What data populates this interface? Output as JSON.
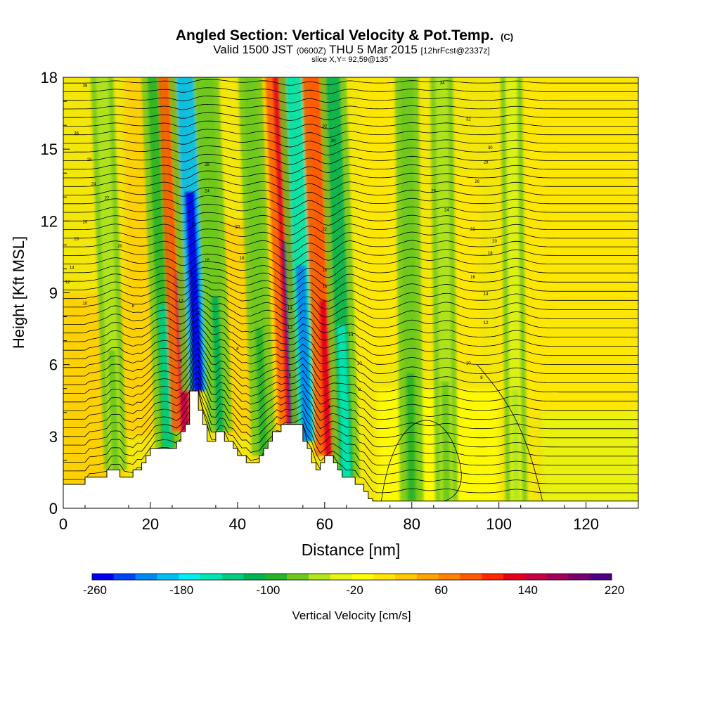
{
  "chart_data": {
    "type": "heatmap",
    "title": "Angled Section: Vertical Velocity & Pot.Temp.",
    "title_units": "(C)",
    "subtitle_valid": "Valid 1500 JST",
    "subtitle_utc": "(0600Z)",
    "subtitle_date": "THU 5 Mar 2015",
    "subtitle_run": "[12hrFcst@2337z]",
    "slice_text": "slice X,Y= 92,59@135°",
    "xlabel": "Distance [nm]",
    "ylabel": "Height [Kft MSL]",
    "xlim": [
      0,
      132
    ],
    "ylim": [
      0,
      18
    ],
    "x_ticks": [
      "0",
      "20",
      "40",
      "60",
      "80",
      "100",
      "120"
    ],
    "y_ticks": [
      "0",
      "3",
      "6",
      "9",
      "12",
      "15",
      "18"
    ],
    "colorbar": {
      "label": "Vertical Velocity [cm/s]",
      "ticks": [
        "-260",
        "-180",
        "-100",
        "-20",
        "60",
        "140",
        "220"
      ],
      "colors": [
        "#0000f0",
        "#0044f5",
        "#0088f5",
        "#00bff5",
        "#00f0f0",
        "#00e6b4",
        "#00cc82",
        "#00b450",
        "#28b428",
        "#6ec81e",
        "#b4e61e",
        "#e6f514",
        "#ffff00",
        "#ffe600",
        "#ffc800",
        "#ffa500",
        "#ff8200",
        "#ff5a00",
        "#ff2800",
        "#e6001e",
        "#c80046",
        "#a0005a",
        "#78006e",
        "#500082"
      ]
    },
    "velocity_features": [
      {
        "x": 12,
        "type": "sinking",
        "value": -60
      },
      {
        "x": 24,
        "type": "sinking",
        "value": -120
      },
      {
        "x": 28,
        "type": "rising",
        "value": 160
      },
      {
        "x": 31,
        "type": "sinking",
        "value": -260
      },
      {
        "x": 36,
        "type": "sinking",
        "value": -100
      },
      {
        "x": 46,
        "type": "sinking",
        "value": -80
      },
      {
        "x": 53,
        "type": "rising",
        "value": 220
      },
      {
        "x": 56,
        "type": "sinking",
        "value": -200
      },
      {
        "x": 61,
        "type": "rising",
        "value": 150
      },
      {
        "x": 65,
        "type": "sinking",
        "value": -140
      },
      {
        "x": 80,
        "type": "sinking",
        "value": -80
      },
      {
        "x": 88,
        "type": "sinking",
        "value": -60
      },
      {
        "x": 104,
        "type": "sinking",
        "value": -40
      }
    ],
    "terrain": {
      "x": [
        0,
        4,
        5,
        9,
        10,
        12,
        13,
        15,
        16,
        18,
        19,
        20,
        21,
        22,
        23,
        24,
        25,
        26,
        27,
        28,
        29,
        30,
        31,
        32,
        33,
        34,
        35,
        36,
        37,
        38,
        39,
        40,
        41,
        42,
        43,
        44,
        45,
        46,
        47,
        48,
        49,
        50,
        51,
        52,
        53,
        54,
        55,
        56,
        57,
        58,
        59,
        60,
        61,
        62,
        63,
        64,
        65,
        66,
        67,
        68,
        69,
        70,
        71,
        132
      ],
      "height": [
        1.0,
        1.0,
        1.3,
        1.3,
        1.6,
        1.6,
        1.3,
        1.3,
        1.6,
        1.9,
        2.2,
        2.5,
        2.5,
        2.5,
        2.5,
        2.5,
        2.5,
        2.8,
        3.2,
        3.5,
        4.9,
        4.9,
        4.1,
        3.5,
        2.8,
        2.8,
        3.2,
        3.2,
        2.8,
        2.8,
        2.5,
        2.2,
        2.2,
        1.9,
        1.9,
        1.9,
        2.2,
        2.5,
        2.8,
        3.2,
        3.2,
        3.5,
        3.5,
        3.5,
        3.5,
        3.5,
        2.8,
        2.5,
        1.9,
        1.6,
        1.9,
        2.2,
        2.2,
        1.9,
        1.6,
        1.3,
        1.3,
        1.3,
        1.0,
        1.0,
        0.7,
        0.4,
        0.3,
        0.3
      ]
    },
    "theta_contour_labels": [
      {
        "x": 5,
        "y": 17.6,
        "text": "38"
      },
      {
        "x": 3,
        "y": 15.6,
        "text": "36"
      },
      {
        "x": 6,
        "y": 14.5,
        "text": "28"
      },
      {
        "x": 7,
        "y": 13.5,
        "text": "24"
      },
      {
        "x": 10,
        "y": 12.9,
        "text": "22"
      },
      {
        "x": 5,
        "y": 11.9,
        "text": "20"
      },
      {
        "x": 3,
        "y": 11.2,
        "text": "16"
      },
      {
        "x": 2,
        "y": 10.0,
        "text": "14"
      },
      {
        "x": 1,
        "y": 9.4,
        "text": "12"
      },
      {
        "x": 5,
        "y": 8.5,
        "text": "10"
      },
      {
        "x": 16,
        "y": 8.4,
        "text": "8"
      },
      {
        "x": 13,
        "y": 10.9,
        "text": "20"
      },
      {
        "x": 33,
        "y": 14.3,
        "text": "28"
      },
      {
        "x": 33,
        "y": 13.2,
        "text": "24"
      },
      {
        "x": 30,
        "y": 11.8,
        "text": "22"
      },
      {
        "x": 33,
        "y": 10.3,
        "text": "16"
      },
      {
        "x": 29,
        "y": 9.8,
        "text": "14"
      },
      {
        "x": 27,
        "y": 8.6,
        "text": "12"
      },
      {
        "x": 31,
        "y": 8.1,
        "text": "10"
      },
      {
        "x": 40,
        "y": 6.6,
        "text": "8"
      },
      {
        "x": 27,
        "y": 6.1,
        "text": "6"
      },
      {
        "x": 40,
        "y": 11.7,
        "text": "20"
      },
      {
        "x": 41,
        "y": 10.4,
        "text": "18"
      },
      {
        "x": 60,
        "y": 15.9,
        "text": "32"
      },
      {
        "x": 62,
        "y": 15.3,
        "text": "30"
      },
      {
        "x": 60,
        "y": 11.6,
        "text": "22"
      },
      {
        "x": 60,
        "y": 9.9,
        "text": "18"
      },
      {
        "x": 60,
        "y": 9.2,
        "text": "16"
      },
      {
        "x": 52,
        "y": 8.3,
        "text": "14"
      },
      {
        "x": 52,
        "y": 7.5,
        "text": "12"
      },
      {
        "x": 66,
        "y": 7.2,
        "text": "14"
      },
      {
        "x": 68,
        "y": 6.0,
        "text": "10"
      },
      {
        "x": 68,
        "y": 4.9,
        "text": "8"
      },
      {
        "x": 52,
        "y": 5.5,
        "text": "6"
      },
      {
        "x": 61,
        "y": 4.2,
        "text": "4"
      },
      {
        "x": 87,
        "y": 17.7,
        "text": "34"
      },
      {
        "x": 93,
        "y": 16.2,
        "text": "32"
      },
      {
        "x": 98,
        "y": 15.0,
        "text": "30"
      },
      {
        "x": 97,
        "y": 14.4,
        "text": "28"
      },
      {
        "x": 95,
        "y": 13.6,
        "text": "26"
      },
      {
        "x": 85,
        "y": 13.2,
        "text": "26"
      },
      {
        "x": 88,
        "y": 12.4,
        "text": "24"
      },
      {
        "x": 94,
        "y": 11.6,
        "text": "22"
      },
      {
        "x": 99,
        "y": 11.1,
        "text": "20"
      },
      {
        "x": 98,
        "y": 10.6,
        "text": "18"
      },
      {
        "x": 94,
        "y": 9.6,
        "text": "16"
      },
      {
        "x": 97,
        "y": 8.9,
        "text": "14"
      },
      {
        "x": 97,
        "y": 7.7,
        "text": "12"
      },
      {
        "x": 93,
        "y": 6.0,
        "text": "10"
      },
      {
        "x": 96,
        "y": 5.4,
        "text": "8"
      }
    ]
  }
}
